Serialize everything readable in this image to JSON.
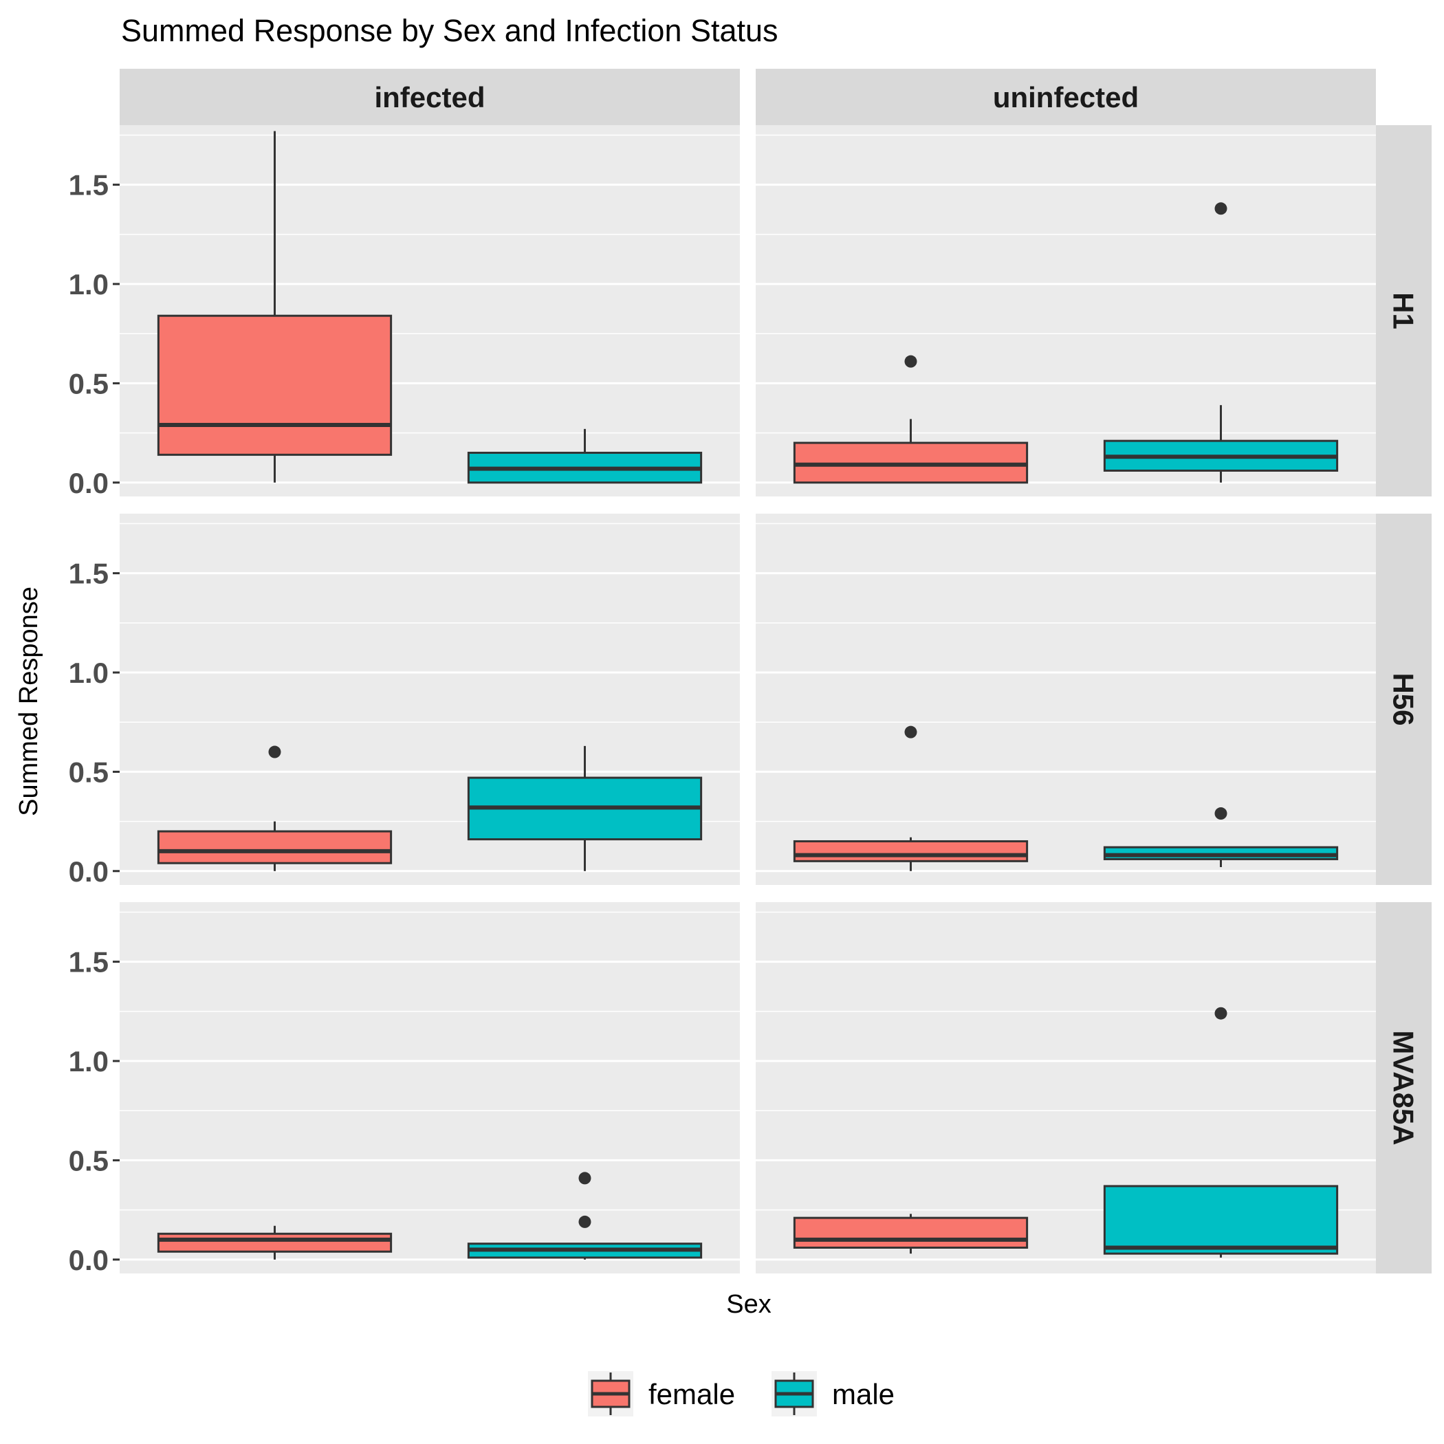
{
  "chart_data": {
    "type": "boxplot",
    "title": "Summed Response by Sex and Infection Status",
    "xlabel": "Sex",
    "ylabel": "Summed Response",
    "ylim": [
      -0.07,
      1.8
    ],
    "yticks": [
      0.0,
      0.5,
      1.0,
      1.5
    ],
    "ytick_labels": [
      "0.0",
      "0.5",
      "1.0",
      "1.5"
    ],
    "column_facets": [
      "infected",
      "uninfected"
    ],
    "row_facets": [
      "H1",
      "H56",
      "MVA85A"
    ],
    "grid": true,
    "legend": {
      "position": "bottom",
      "title": "",
      "entries": [
        "female",
        "male"
      ]
    },
    "colors": {
      "female": "#F8766D",
      "male": "#00BFC4",
      "panel": "#EBEBEB",
      "strip": "#D9D9D9",
      "outline": "#333333"
    },
    "groups": [
      "female",
      "male"
    ],
    "panels": [
      {
        "row": "H1",
        "col": "infected",
        "boxes": [
          {
            "group": "female",
            "min": 0.0,
            "q1": 0.14,
            "median": 0.29,
            "q3": 0.84,
            "max": 1.77,
            "outliers": []
          },
          {
            "group": "male",
            "min": 0.0,
            "q1": 0.0,
            "median": 0.07,
            "q3": 0.15,
            "max": 0.27,
            "outliers": []
          }
        ]
      },
      {
        "row": "H1",
        "col": "uninfected",
        "boxes": [
          {
            "group": "female",
            "min": 0.0,
            "q1": 0.0,
            "median": 0.09,
            "q3": 0.2,
            "max": 0.32,
            "outliers": [
              0.61
            ]
          },
          {
            "group": "male",
            "min": 0.0,
            "q1": 0.06,
            "median": 0.13,
            "q3": 0.21,
            "max": 0.39,
            "outliers": [
              1.38
            ]
          }
        ]
      },
      {
        "row": "H56",
        "col": "infected",
        "boxes": [
          {
            "group": "female",
            "min": 0.0,
            "q1": 0.04,
            "median": 0.1,
            "q3": 0.2,
            "max": 0.25,
            "outliers": [
              0.6
            ]
          },
          {
            "group": "male",
            "min": 0.0,
            "q1": 0.16,
            "median": 0.32,
            "q3": 0.47,
            "max": 0.63,
            "outliers": []
          }
        ]
      },
      {
        "row": "H56",
        "col": "uninfected",
        "boxes": [
          {
            "group": "female",
            "min": 0.0,
            "q1": 0.05,
            "median": 0.08,
            "q3": 0.15,
            "max": 0.17,
            "outliers": [
              0.7
            ]
          },
          {
            "group": "male",
            "min": 0.02,
            "q1": 0.06,
            "median": 0.08,
            "q3": 0.12,
            "max": 0.12,
            "outliers": [
              0.29
            ]
          }
        ]
      },
      {
        "row": "MVA85A",
        "col": "infected",
        "boxes": [
          {
            "group": "female",
            "min": 0.0,
            "q1": 0.04,
            "median": 0.1,
            "q3": 0.13,
            "max": 0.17,
            "outliers": []
          },
          {
            "group": "male",
            "min": 0.0,
            "q1": 0.01,
            "median": 0.05,
            "q3": 0.08,
            "max": 0.08,
            "outliers": [
              0.19,
              0.41
            ]
          }
        ]
      },
      {
        "row": "MVA85A",
        "col": "uninfected",
        "boxes": [
          {
            "group": "female",
            "min": 0.03,
            "q1": 0.06,
            "median": 0.1,
            "q3": 0.21,
            "max": 0.23,
            "outliers": []
          },
          {
            "group": "male",
            "min": 0.01,
            "q1": 0.03,
            "median": 0.06,
            "q3": 0.37,
            "max": 0.37,
            "outliers": [
              1.24
            ]
          }
        ]
      }
    ]
  }
}
